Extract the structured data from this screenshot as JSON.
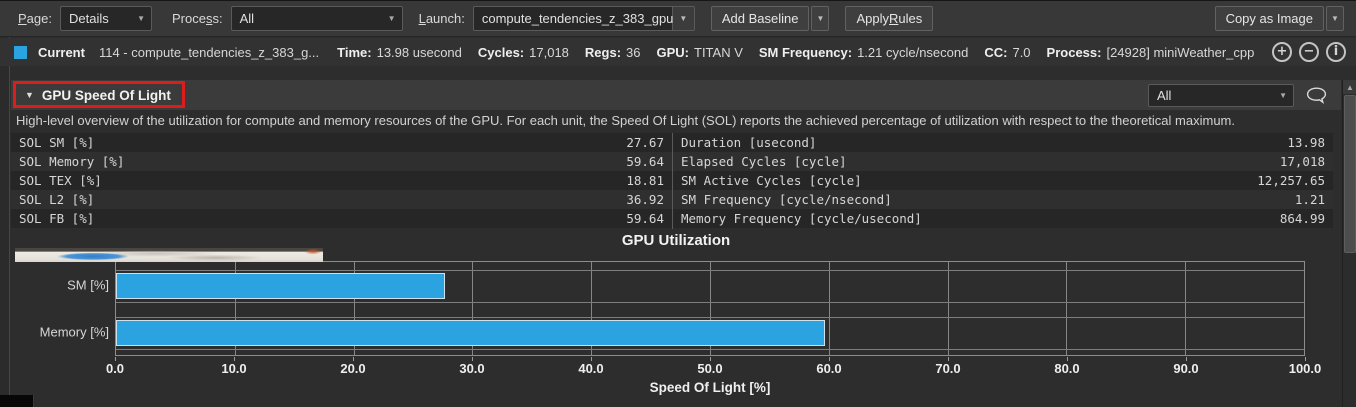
{
  "colors": {
    "bar_blue": "#2aa3e0",
    "annotation_red": "#dd1c1c"
  },
  "icons": {
    "dropdown_arrow": "▼",
    "collapse_arrow": "▼",
    "scroll_up_arrow": "▲",
    "zoom_in": "+",
    "zoom_out": "−",
    "info": "i"
  },
  "toolbar": {
    "page_label": {
      "pre": "",
      "accel": "P",
      "post": "age:"
    },
    "page_value": "Details",
    "process_label": {
      "pre": "Proce",
      "accel": "s",
      "post": "s:"
    },
    "process_value": "All",
    "launch_label": {
      "pre": "",
      "accel": "L",
      "post": "aunch:"
    },
    "launch_value": "compute_tendencies_z_383_gpu",
    "add_baseline_label": "Add Baseline",
    "apply_rules_label": {
      "pre": "Apply ",
      "accel": "R",
      "post": "ules"
    },
    "copy_as_image_label": "Copy as Image"
  },
  "result_bar": {
    "swatch_color": "#2aa3e0",
    "label": "Current",
    "kernel": "114 - compute_tendencies_z_383_g...",
    "stats": [
      {
        "key": "Time:",
        "value": "13.98 usecond"
      },
      {
        "key": "Cycles:",
        "value": "17,018"
      },
      {
        "key": "Regs:",
        "value": "36"
      },
      {
        "key": "GPU:",
        "value": "TITAN V"
      },
      {
        "key": "SM Frequency:",
        "value": "1.21 cycle/nsecond"
      },
      {
        "key": "CC:",
        "value": "7.0"
      },
      {
        "key": "Process:",
        "value": "[24928] miniWeather_cpp"
      }
    ]
  },
  "section": {
    "title": "GPU Speed Of Light",
    "filter_value": "All",
    "description": "High-level overview of the utilization for compute and memory resources of the GPU. For each unit, the Speed Of Light (SOL) reports the achieved percentage of utilization with respect to the theoretical maximum."
  },
  "metrics_table": {
    "left": [
      {
        "name": "SOL SM [%]",
        "value": "27.67"
      },
      {
        "name": "SOL Memory [%]",
        "value": "59.64"
      },
      {
        "name": "SOL TEX [%]",
        "value": "18.81"
      },
      {
        "name": "SOL L2 [%]",
        "value": "36.92"
      },
      {
        "name": "SOL FB [%]",
        "value": "59.64"
      }
    ],
    "right": [
      {
        "name": "Duration [usecond]",
        "value": "13.98"
      },
      {
        "name": "Elapsed Cycles [cycle]",
        "value": "17,018"
      },
      {
        "name": "SM Active Cycles [cycle]",
        "value": "12,257.65"
      },
      {
        "name": "SM Frequency [cycle/nsecond]",
        "value": "1.21"
      },
      {
        "name": "Memory Frequency [cycle/usecond]",
        "value": "864.99"
      }
    ]
  },
  "chart_data": {
    "type": "bar",
    "orientation": "horizontal",
    "title": "GPU Utilization",
    "categories": [
      "SM [%]",
      "Memory [%]"
    ],
    "values": [
      27.67,
      59.64
    ],
    "xlabel": "Speed Of Light [%]",
    "xlim": [
      0,
      100
    ],
    "xticks": [
      0,
      10,
      20,
      30,
      40,
      50,
      60,
      70,
      80,
      90,
      100
    ],
    "xtick_labels": [
      "0.0",
      "10.0",
      "20.0",
      "30.0",
      "40.0",
      "50.0",
      "60.0",
      "70.0",
      "80.0",
      "90.0",
      "100.0"
    ],
    "bar_color": "#2aa3e0",
    "grid": true,
    "legend": false
  }
}
